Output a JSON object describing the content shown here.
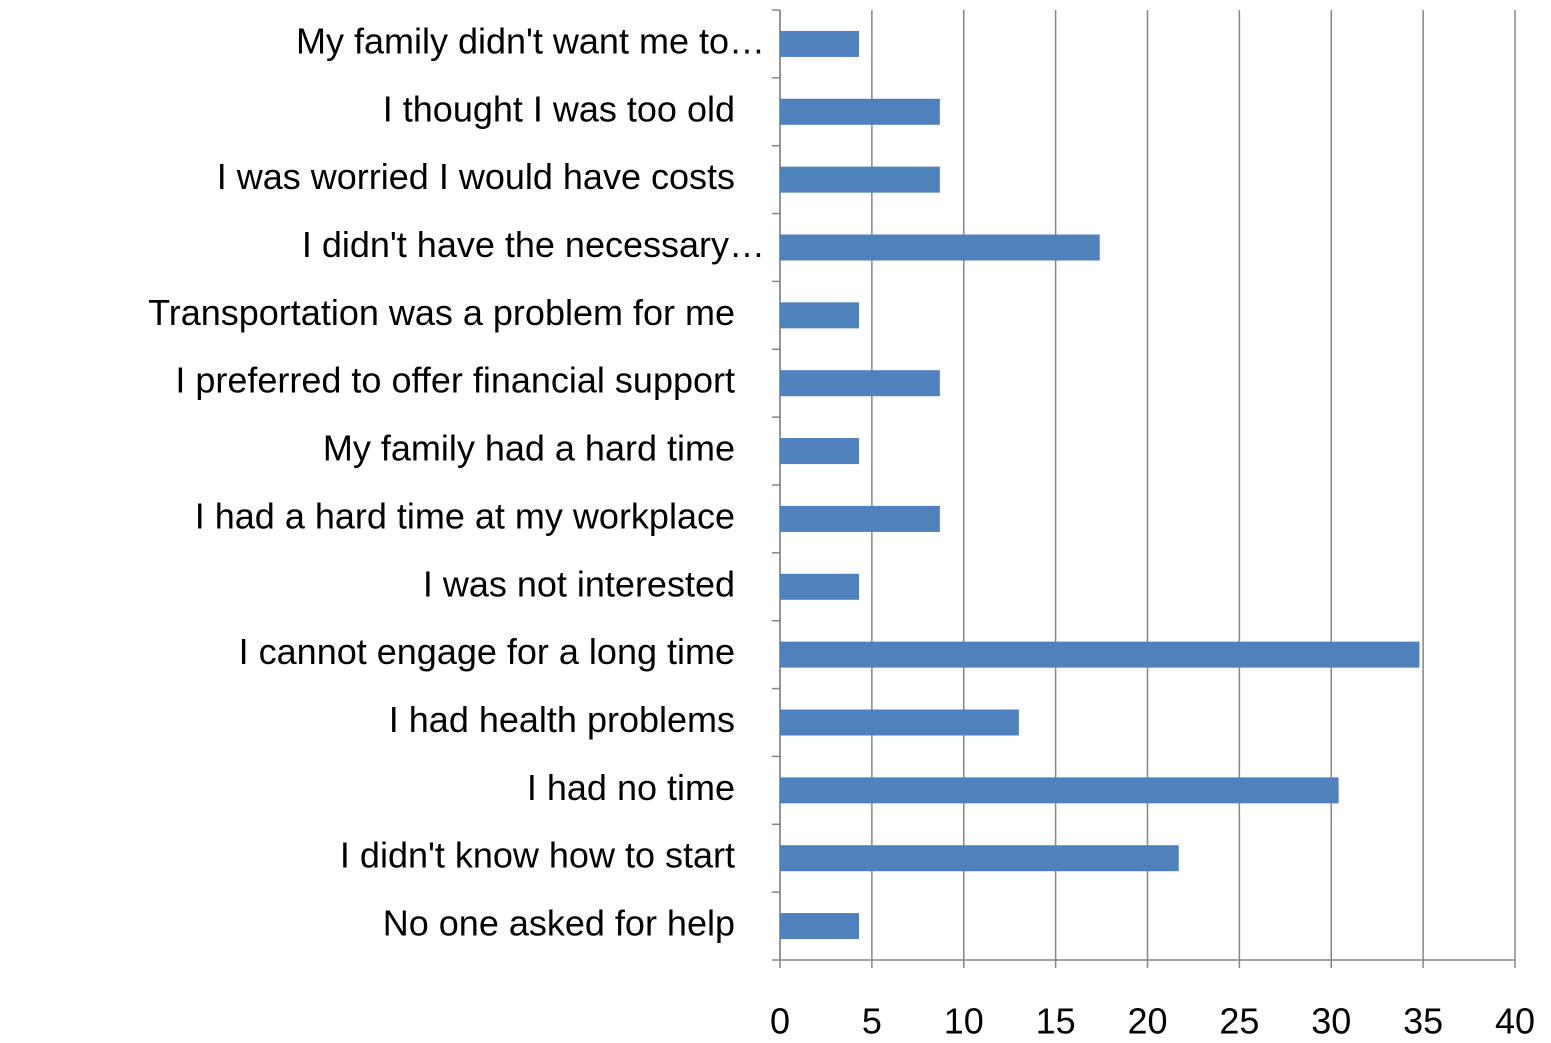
{
  "chart_data": {
    "type": "barh",
    "categories": [
      "My family didn't want me to…",
      "I thought I was too old",
      "I was worried I would have costs",
      "I didn't have the necessary…",
      "Transportation was a problem for me",
      "I preferred to offer financial support",
      "My family had a hard time",
      "I had a hard time at my workplace",
      "I was not interested",
      "I cannot engage for a long time",
      "I had health problems",
      "I had no time",
      "I didn't know how to start",
      "No one asked for help"
    ],
    "values": [
      4.3,
      8.7,
      8.7,
      17.4,
      4.3,
      8.7,
      4.3,
      8.7,
      4.3,
      34.8,
      13,
      30.4,
      21.7,
      4.3
    ],
    "color": "#4f81bd",
    "xlim": [
      0,
      40
    ],
    "xticks": [
      0,
      5,
      10,
      15,
      20,
      25,
      30,
      35,
      40
    ],
    "grid": true
  }
}
